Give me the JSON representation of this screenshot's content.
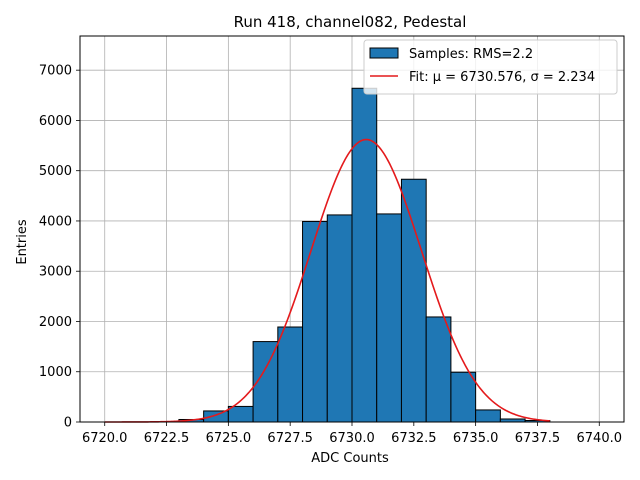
{
  "chart_data": {
    "type": "bar",
    "title": "Run 418, channel082, Pedestal",
    "xlabel": "ADC Counts",
    "ylabel": "Entries",
    "xlim": [
      6719.0,
      6741.0
    ],
    "ylim": [
      0,
      7680
    ],
    "xticks": [
      6720.0,
      6722.5,
      6725.0,
      6727.5,
      6730.0,
      6732.5,
      6735.0,
      6737.5,
      6740.0
    ],
    "xtick_labels": [
      "6720.0",
      "6722.5",
      "6725.0",
      "6727.5",
      "6730.0",
      "6732.5",
      "6735.0",
      "6737.5",
      "6740.0"
    ],
    "yticks": [
      0,
      1000,
      2000,
      3000,
      4000,
      5000,
      6000,
      7000
    ],
    "ytick_labels": [
      "0",
      "1000",
      "2000",
      "3000",
      "4000",
      "5000",
      "6000",
      "7000"
    ],
    "grid": true,
    "legend_position": "top-right",
    "bar_color": "#1f77b4",
    "fit_color": "#e41a1c",
    "series": [
      {
        "name": "Samples: RMS=2.2",
        "type": "histogram",
        "bin_edges": [
          6723,
          6724,
          6725,
          6726,
          6727,
          6728,
          6729,
          6730,
          6731,
          6732,
          6733,
          6734,
          6735,
          6736,
          6737,
          6738
        ],
        "counts": [
          50,
          220,
          310,
          1600,
          1890,
          3990,
          4120,
          6640,
          4140,
          4830,
          2090,
          990,
          240,
          60,
          30
        ]
      },
      {
        "name": "Fit: μ = 6730.576, σ = 2.234",
        "type": "line",
        "mu": 6730.576,
        "sigma": 2.234,
        "amplitude": 5620,
        "x_range": [
          6720,
          6738
        ]
      }
    ],
    "legend": [
      {
        "label": "Samples: RMS=2.2",
        "kind": "patch"
      },
      {
        "label": "Fit: μ = 6730.576, σ = 2.234",
        "kind": "line"
      }
    ]
  }
}
